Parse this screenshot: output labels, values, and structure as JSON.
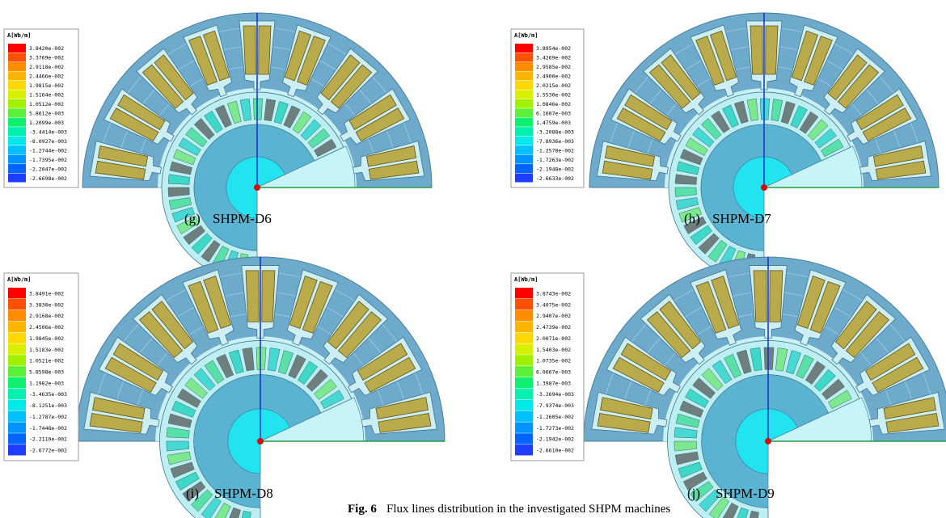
{
  "panels": [
    {
      "label": "(g)",
      "name": "SHPM-D6",
      "legend": {
        "title": "A[Wb/m]",
        "values": [
          "3.8420e-002",
          "3.3769e-002",
          "2.9118e-002",
          "2.4466e-002",
          "1.9815e-002",
          "1.5164e-002",
          "1.0512e-002",
          "5.8612e-003",
          "1.2099e-003",
          "-3.4414e-003",
          "-8.0927e-003",
          "-1.2744e-002",
          "-1.7395e-002",
          "-2.2047e-002",
          "-2.6698e-002"
        ]
      }
    },
    {
      "label": "(h)",
      "name": "SHPM-D7",
      "legend": {
        "title": "A[Wb/m]",
        "values": [
          "3.8954e-002",
          "3.4269e-002",
          "2.9585e-002",
          "2.4900e-002",
          "2.0215e-002",
          "1.5530e-002",
          "1.0846e-002",
          "6.1607e-003",
          "1.4759e-003",
          "-3.2088e-003",
          "-7.8936e-003",
          "-1.2578e-002",
          "-1.7263e-002",
          "-2.1948e-002",
          "-2.6633e-002"
        ]
      }
    },
    {
      "label": "(i)",
      "name": "SHPM-D8",
      "legend": {
        "title": "A[Wb/m]",
        "values": [
          "3.8491e-002",
          "3.3830e-002",
          "2.9168e-002",
          "2.4506e-002",
          "1.9845e-002",
          "1.5183e-002",
          "1.0521e-002",
          "5.8598e-003",
          "1.1982e-003",
          "-3.4635e-003",
          "-8.1251e-003",
          "-1.2787e-002",
          "-1.7448e-002",
          "-2.2110e-002",
          "-2.6772e-002"
        ]
      }
    },
    {
      "label": "(j)",
      "name": "SHPM-D9",
      "legend": {
        "title": "A[Wb/m]",
        "values": [
          "3.8743e-002",
          "3.4075e-002",
          "2.9407e-002",
          "2.4739e-002",
          "2.0071e-002",
          "1.5403e-002",
          "1.0735e-002",
          "6.0667e-003",
          "1.3987e-003",
          "-3.2694e-003",
          "-7.9374e-003",
          "-1.2605e-002",
          "-1.7273e-002",
          "-2.1942e-002",
          "-2.6610e-002"
        ]
      }
    }
  ],
  "caption": {
    "label": "Fig. 6",
    "text": "Flux lines distribution in the investigated SHPM machines"
  }
}
